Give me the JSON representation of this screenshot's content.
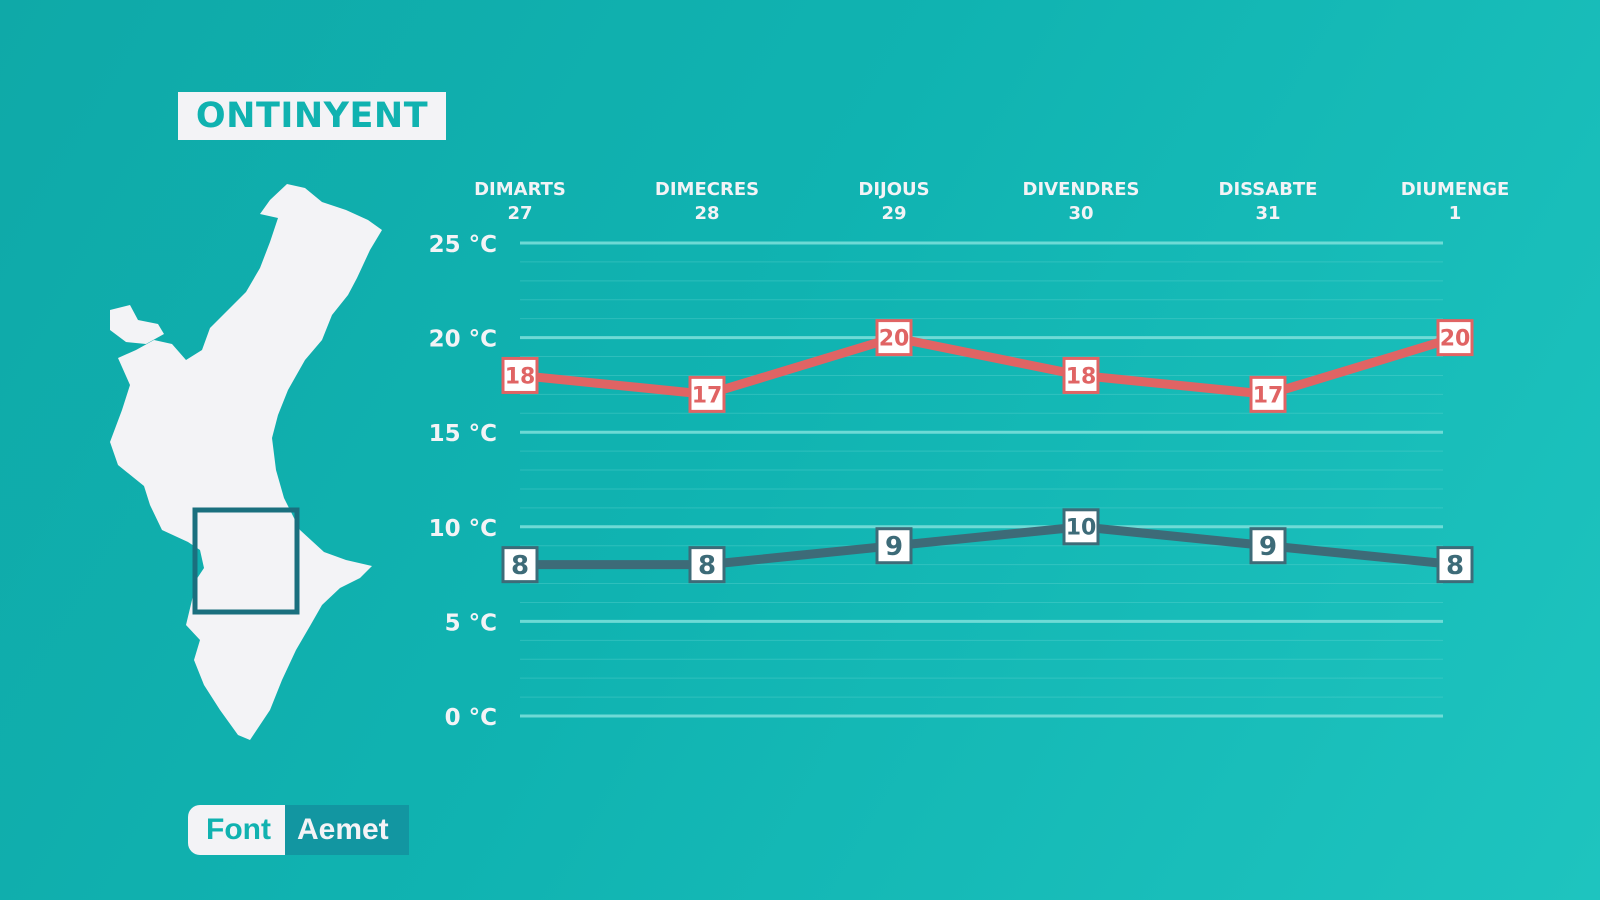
{
  "header": {
    "location": "ONTINYENT"
  },
  "source": {
    "label": "Font",
    "value": "Aemet"
  },
  "colors": {
    "max_line": "#e06464",
    "min_line": "#3d6b78",
    "grid": "#7fe0dc",
    "text": "#f3f3f6",
    "map": "#f3f3f6",
    "map_marker": "#1a6f7e"
  },
  "chart_data": {
    "type": "line",
    "categories": [
      {
        "day": "DIMARTS",
        "date": "27"
      },
      {
        "day": "DIMECRES",
        "date": "28"
      },
      {
        "day": "DIJOUS",
        "date": "29"
      },
      {
        "day": "DIVENDRES",
        "date": "30"
      },
      {
        "day": "DISSABTE",
        "date": "31"
      },
      {
        "day": "DIUMENGE",
        "date": "1"
      }
    ],
    "series": [
      {
        "values": [
          18,
          17,
          20,
          18,
          17,
          20
        ]
      },
      {
        "values": [
          8,
          8,
          9,
          10,
          9,
          8
        ]
      }
    ],
    "yticks": [
      {
        "value": 25,
        "label": "25 °C"
      },
      {
        "value": 20,
        "label": "20 °C"
      },
      {
        "value": 15,
        "label": "15 °C"
      },
      {
        "value": 10,
        "label": "10 °C"
      },
      {
        "value": 5,
        "label": "5 °C"
      },
      {
        "value": 0,
        "label": "0 °C"
      }
    ],
    "ylim": [
      0,
      25
    ],
    "grid": true
  }
}
